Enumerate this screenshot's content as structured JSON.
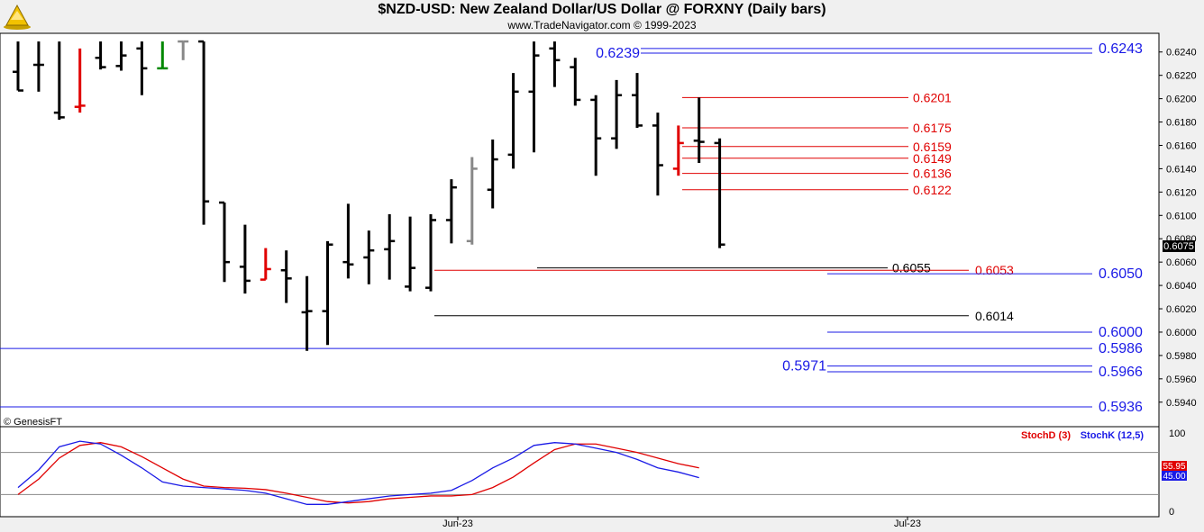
{
  "header": {
    "title": "$NZD-USD:  New Zealand Dollar/US Dollar @ FORXNY  (Daily bars)",
    "subtitle": "www.TradeNavigator.com © 1999-2023"
  },
  "copyright": "© GenesisFT",
  "colors": {
    "background": "#f0f0f0",
    "plot_bg": "#ffffff",
    "bar_default": "#000000",
    "bar_red": "#e00000",
    "bar_gray": "#888888",
    "bar_green": "#008800",
    "level_red": "#e00000",
    "level_blue": "#1a1ae6",
    "level_black": "#000000",
    "stoch_d": "#e00000",
    "stoch_k": "#1a1ae6"
  },
  "chart_data": [
    {
      "type": "ohlc",
      "x_ticks": [
        "Jun-23",
        "Jul-23"
      ],
      "y_ticks": [
        "0.6240",
        "0.6220",
        "0.6200",
        "0.6180",
        "0.6160",
        "0.6140",
        "0.6120",
        "0.6100",
        "0.6080",
        "0.6060",
        "0.6040",
        "0.6020",
        "0.6000",
        "0.5980",
        "0.5960",
        "0.5940"
      ],
      "ylim": [
        0.5919,
        0.6256
      ],
      "last_price": "0.6075",
      "bars": [
        {
          "h": 0.6249,
          "l": 0.6207,
          "o": 0.6223,
          "c": 0.6207,
          "col": "black"
        },
        {
          "h": 0.6249,
          "l": 0.6206,
          "o": 0.6229,
          "c": 0.6229,
          "col": "black"
        },
        {
          "h": 0.6249,
          "l": 0.6182,
          "o": 0.6188,
          "c": 0.6184,
          "col": "black"
        },
        {
          "h": 0.6243,
          "l": 0.6188,
          "o": 0.6193,
          "c": 0.6194,
          "col": "red"
        },
        {
          "h": 0.6249,
          "l": 0.6225,
          "o": 0.6235,
          "c": 0.6227,
          "col": "black"
        },
        {
          "h": 0.6249,
          "l": 0.6224,
          "o": 0.6228,
          "c": 0.6237,
          "col": "black"
        },
        {
          "h": 0.6249,
          "l": 0.6203,
          "o": 0.6243,
          "c": 0.6226,
          "col": "black"
        },
        {
          "h": 0.6249,
          "l": 0.6226,
          "o": 0.6226,
          "c": 0.6226,
          "col": "green"
        },
        {
          "h": 0.6249,
          "l": 0.6233,
          "o": 0.6249,
          "c": 0.6249,
          "col": "gray"
        },
        {
          "h": 0.6249,
          "l": 0.6092,
          "o": 0.6249,
          "c": 0.6112,
          "col": "black"
        },
        {
          "h": 0.6111,
          "l": 0.6043,
          "o": 0.6111,
          "c": 0.606,
          "col": "black"
        },
        {
          "h": 0.6092,
          "l": 0.6033,
          "o": 0.6056,
          "c": 0.6044,
          "col": "black"
        },
        {
          "h": 0.6072,
          "l": 0.6045,
          "o": 0.6045,
          "c": 0.6054,
          "col": "red"
        },
        {
          "h": 0.607,
          "l": 0.6025,
          "o": 0.6053,
          "c": 0.6046,
          "col": "black"
        },
        {
          "h": 0.6048,
          "l": 0.5984,
          "o": 0.6017,
          "c": 0.6018,
          "col": "black"
        },
        {
          "h": 0.6078,
          "l": 0.5989,
          "o": 0.6018,
          "c": 0.6075,
          "col": "black"
        },
        {
          "h": 0.611,
          "l": 0.6046,
          "o": 0.606,
          "c": 0.6058,
          "col": "black"
        },
        {
          "h": 0.6087,
          "l": 0.6041,
          "o": 0.6064,
          "c": 0.607,
          "col": "black"
        },
        {
          "h": 0.6101,
          "l": 0.6045,
          "o": 0.6071,
          "c": 0.6078,
          "col": "black"
        },
        {
          "h": 0.6099,
          "l": 0.6035,
          "o": 0.6039,
          "c": 0.6055,
          "col": "black"
        },
        {
          "h": 0.6101,
          "l": 0.6035,
          "o": 0.6038,
          "c": 0.6096,
          "col": "black"
        },
        {
          "h": 0.6131,
          "l": 0.6076,
          "o": 0.6096,
          "c": 0.6124,
          "col": "black"
        },
        {
          "h": 0.615,
          "l": 0.6075,
          "o": 0.6078,
          "c": 0.614,
          "col": "gray"
        },
        {
          "h": 0.6165,
          "l": 0.6106,
          "o": 0.6122,
          "c": 0.6148,
          "col": "black"
        },
        {
          "h": 0.6222,
          "l": 0.614,
          "o": 0.6152,
          "c": 0.6206,
          "col": "black"
        },
        {
          "h": 0.6249,
          "l": 0.6154,
          "o": 0.6206,
          "c": 0.6237,
          "col": "black"
        },
        {
          "h": 0.6249,
          "l": 0.621,
          "o": 0.6243,
          "c": 0.6233,
          "col": "black"
        },
        {
          "h": 0.6235,
          "l": 0.6194,
          "o": 0.6227,
          "c": 0.6199,
          "col": "black"
        },
        {
          "h": 0.6203,
          "l": 0.6134,
          "o": 0.6199,
          "c": 0.6166,
          "col": "black"
        },
        {
          "h": 0.6216,
          "l": 0.6157,
          "o": 0.6166,
          "c": 0.6203,
          "col": "black"
        },
        {
          "h": 0.6222,
          "l": 0.6175,
          "o": 0.6203,
          "c": 0.6177,
          "col": "black"
        },
        {
          "h": 0.6188,
          "l": 0.6117,
          "o": 0.6177,
          "c": 0.6143,
          "col": "black"
        },
        {
          "h": 0.6177,
          "l": 0.6134,
          "o": 0.614,
          "c": 0.6162,
          "col": "red"
        },
        {
          "h": 0.6201,
          "l": 0.6145,
          "o": 0.6164,
          "c": 0.6163,
          "col": "black"
        },
        {
          "h": 0.6166,
          "l": 0.6072,
          "o": 0.6162,
          "c": 0.6075,
          "col": "black"
        }
      ],
      "levels": [
        {
          "label": "0.6243",
          "value": 0.6243,
          "color": "blue",
          "span": "wide-right"
        },
        {
          "label": "0.6239",
          "value": 0.6239,
          "color": "blue",
          "span": "wide-left"
        },
        {
          "label": "0.6201",
          "value": 0.6201,
          "color": "red",
          "span": "short"
        },
        {
          "label": "0.6175",
          "value": 0.6175,
          "color": "red",
          "span": "short"
        },
        {
          "label": "0.6159",
          "value": 0.6159,
          "color": "red",
          "span": "short"
        },
        {
          "label": "0.6149",
          "value": 0.6149,
          "color": "red",
          "span": "short"
        },
        {
          "label": "0.6136",
          "value": 0.6136,
          "color": "red",
          "span": "short"
        },
        {
          "label": "0.6122",
          "value": 0.6122,
          "color": "red",
          "span": "short"
        },
        {
          "label": "0.6055",
          "value": 0.6055,
          "color": "black",
          "span": "mid"
        },
        {
          "label": "0.6053",
          "value": 0.6053,
          "color": "red",
          "span": "mid"
        },
        {
          "label": "0.6050",
          "value": 0.605,
          "color": "blue",
          "span": "right"
        },
        {
          "label": "0.6014",
          "value": 0.6014,
          "color": "black",
          "span": "mid"
        },
        {
          "label": "0.6000",
          "value": 0.6,
          "color": "blue",
          "span": "right"
        },
        {
          "label": "0.5986",
          "value": 0.5986,
          "color": "blue",
          "span": "full"
        },
        {
          "label": "0.5971",
          "value": 0.5971,
          "color": "blue",
          "span": "right"
        },
        {
          "label": "0.5966",
          "value": 0.5966,
          "color": "blue",
          "span": "right"
        },
        {
          "label": "0.5936",
          "value": 0.5936,
          "color": "blue",
          "span": "full"
        }
      ]
    },
    {
      "type": "line",
      "title": "",
      "y_ticks": [
        "100",
        "0"
      ],
      "ylim": [
        0,
        100
      ],
      "reference_lines": [
        80,
        20
      ],
      "series": [
        {
          "name": "StochD (3)",
          "color": "red",
          "last": "55.95",
          "values": [
            20,
            42,
            72,
            90,
            94,
            88,
            74,
            58,
            42,
            32,
            30,
            29,
            27,
            22,
            16,
            10,
            8,
            10,
            14,
            16,
            18,
            18,
            20,
            30,
            45,
            65,
            84,
            92,
            92,
            86,
            80,
            72,
            64,
            58
          ]
        },
        {
          "name": "StochK (12,5)",
          "color": "blue",
          "last": "45.00",
          "values": [
            30,
            55,
            88,
            96,
            92,
            76,
            58,
            38,
            32,
            30,
            28,
            26,
            22,
            14,
            6,
            6,
            10,
            14,
            18,
            20,
            22,
            26,
            40,
            58,
            72,
            90,
            94,
            92,
            86,
            80,
            70,
            58,
            52,
            44
          ]
        }
      ],
      "last_values": [
        "55.95",
        "45.00"
      ]
    }
  ]
}
